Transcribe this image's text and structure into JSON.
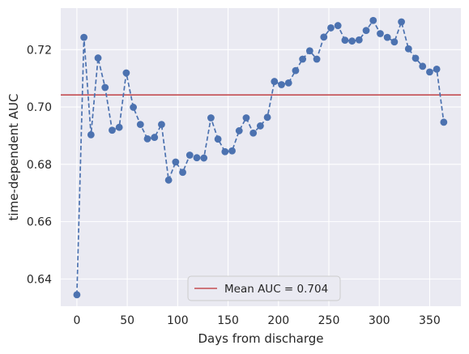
{
  "chart_data": {
    "type": "line",
    "title": "",
    "xlabel": "Days from discharge",
    "ylabel": "time-dependent AUC",
    "xlim": [
      -16,
      381
    ],
    "ylim": [
      0.6305,
      0.7345
    ],
    "xticks": [
      0,
      50,
      100,
      150,
      200,
      250,
      300,
      350
    ],
    "yticks": [
      0.64,
      0.66,
      0.68,
      0.7,
      0.72
    ],
    "ytick_labels": [
      "0.64",
      "0.66",
      "0.68",
      "0.70",
      "0.72"
    ],
    "grid": true,
    "legend_position": "bottom-center",
    "series": [
      {
        "color": "#4c72b0",
        "line_style": "dashed",
        "marker": "circle",
        "x": [
          0,
          7,
          14,
          21,
          28,
          35,
          42,
          49,
          56,
          63,
          70,
          77,
          84,
          91,
          98,
          105,
          112,
          119,
          126,
          133,
          140,
          147,
          154,
          161,
          168,
          175,
          182,
          189,
          196,
          203,
          210,
          217,
          224,
          231,
          238,
          245,
          252,
          259,
          266,
          273,
          280,
          287,
          294,
          301,
          308,
          315,
          322,
          329,
          336,
          343,
          350,
          357,
          364
        ],
        "y": [
          0.6345,
          0.7243,
          0.6903,
          0.7171,
          0.7068,
          0.6919,
          0.6929,
          0.7119,
          0.6999,
          0.6939,
          0.6889,
          0.6894,
          0.6939,
          0.6745,
          0.6808,
          0.6772,
          0.6832,
          0.6823,
          0.6822,
          0.6962,
          0.6888,
          0.6844,
          0.6847,
          0.6917,
          0.6962,
          0.6909,
          0.6934,
          0.6964,
          0.7089,
          0.7078,
          0.7084,
          0.7127,
          0.7167,
          0.7196,
          0.7167,
          0.7244,
          0.7276,
          0.7284,
          0.7233,
          0.723,
          0.7234,
          0.7267,
          0.7302,
          0.7256,
          0.7243,
          0.7227,
          0.7297,
          0.7203,
          0.717,
          0.7142,
          0.7122,
          0.7132,
          0.6947
        ]
      }
    ],
    "reference_line": {
      "label": "Mean AUC = 0.704",
      "y": 0.7042,
      "color": "#c44e52"
    },
    "style": {
      "plot_background": "#eaeaf2",
      "grid_color": "#ffffff"
    }
  }
}
